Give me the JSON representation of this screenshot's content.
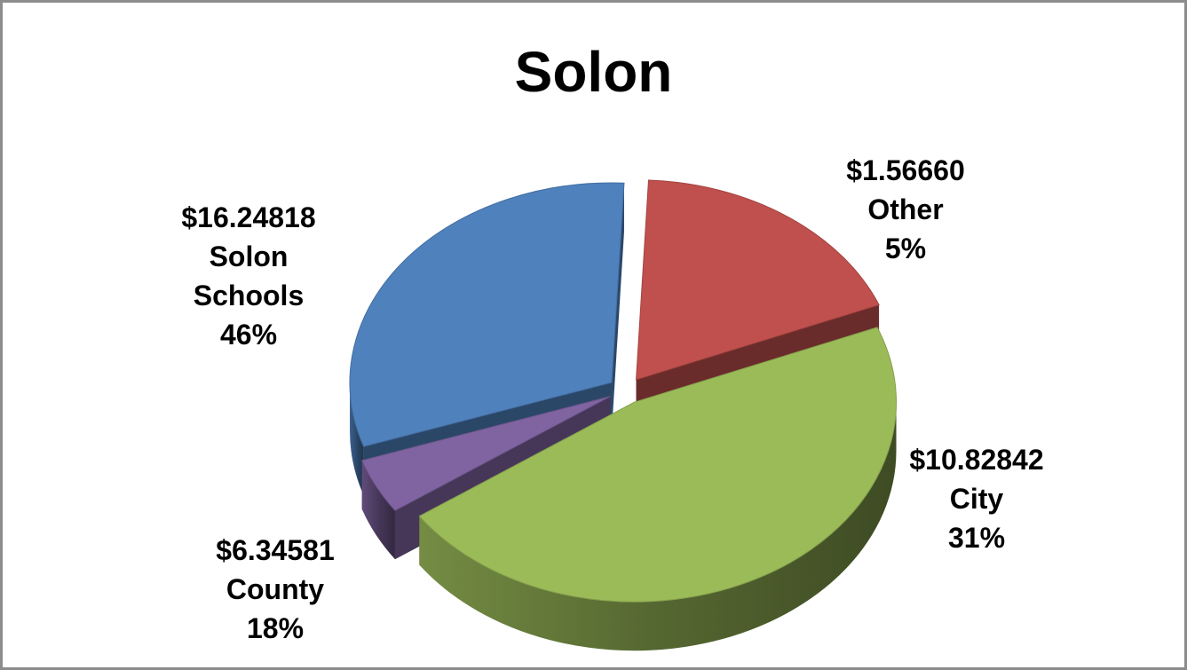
{
  "chart_data": {
    "type": "pie",
    "title": "Solon",
    "slices": [
      {
        "name": "Solon Schools",
        "value": 16.24818,
        "value_label": "$16.24818",
        "name_lines": [
          "Solon",
          "Schools"
        ],
        "percent_label": "46%",
        "color": "#9BBB59"
      },
      {
        "name": "Other",
        "value": 1.5666,
        "value_label": "$1.56660",
        "name_lines": [
          "Other"
        ],
        "percent_label": "5%",
        "color": "#8064A2"
      },
      {
        "name": "City",
        "value": 10.82842,
        "value_label": "$10.82842",
        "name_lines": [
          "City"
        ],
        "percent_label": "31%",
        "color": "#4F81BD"
      },
      {
        "name": "County",
        "value": 6.34581,
        "value_label": "$6.34581",
        "name_lines": [
          "County"
        ],
        "percent_label": "18%",
        "color": "#C0504D"
      }
    ],
    "legend": "none",
    "style": "3d-exploded"
  }
}
